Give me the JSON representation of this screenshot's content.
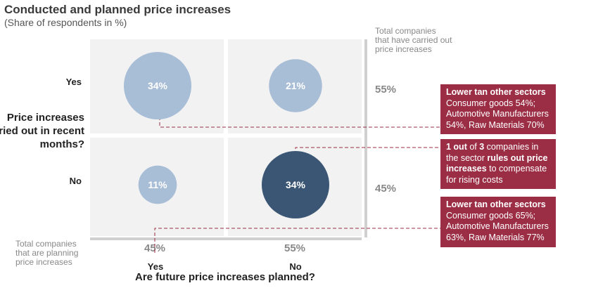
{
  "title": "Conducted and planned price increases",
  "subtitle": "(Share of respondents in %)",
  "y_axis_title": "Price increases carried out in recent months?",
  "x_axis_title": "Are future price increases planned?",
  "row_labels": [
    "Yes",
    "No"
  ],
  "col_labels": [
    "Yes",
    "No"
  ],
  "row_totals_caption": "Total companies that have carried out price increases",
  "col_totals_caption": "Total companies that are planning price increases",
  "row_totals": [
    "55%",
    "45%"
  ],
  "col_totals": [
    "45%",
    "55%"
  ],
  "colors": {
    "light_bubble": "#a8bdd6",
    "dark_bubble": "#3a5674",
    "callout": "#9b2d45",
    "leader": "#9b2d45"
  },
  "chart_data": {
    "type": "bubble-matrix",
    "rows": [
      "Yes",
      "No"
    ],
    "cols": [
      "Yes",
      "No"
    ],
    "cells": [
      {
        "row": "Yes",
        "col": "Yes",
        "value": 34,
        "label": "34%",
        "highlight": false
      },
      {
        "row": "Yes",
        "col": "No",
        "value": 21,
        "label": "21%",
        "highlight": false
      },
      {
        "row": "No",
        "col": "Yes",
        "value": 11,
        "label": "11%",
        "highlight": false
      },
      {
        "row": "No",
        "col": "No",
        "value": 34,
        "label": "34%",
        "highlight": true
      }
    ]
  },
  "callouts": [
    {
      "bold": "Lower tan other sectors",
      "text": "Consumer goods 54%; Automotive Manufacturers 54%, Raw Materials 70%"
    },
    {
      "parts": [
        {
          "t": "1 out",
          "b": true
        },
        {
          "t": " of ",
          "b": false
        },
        {
          "t": "3",
          "b": true
        },
        {
          "t": " companies in the sector ",
          "b": false
        },
        {
          "t": "rules out price increases",
          "b": true
        },
        {
          "t": " to compensate for rising costs",
          "b": false
        }
      ]
    },
    {
      "bold": "Lower tan other sectors",
      "text": "Consumer goods 65%; Automotive Manufacturers 63%, Raw Materials 77%"
    }
  ]
}
